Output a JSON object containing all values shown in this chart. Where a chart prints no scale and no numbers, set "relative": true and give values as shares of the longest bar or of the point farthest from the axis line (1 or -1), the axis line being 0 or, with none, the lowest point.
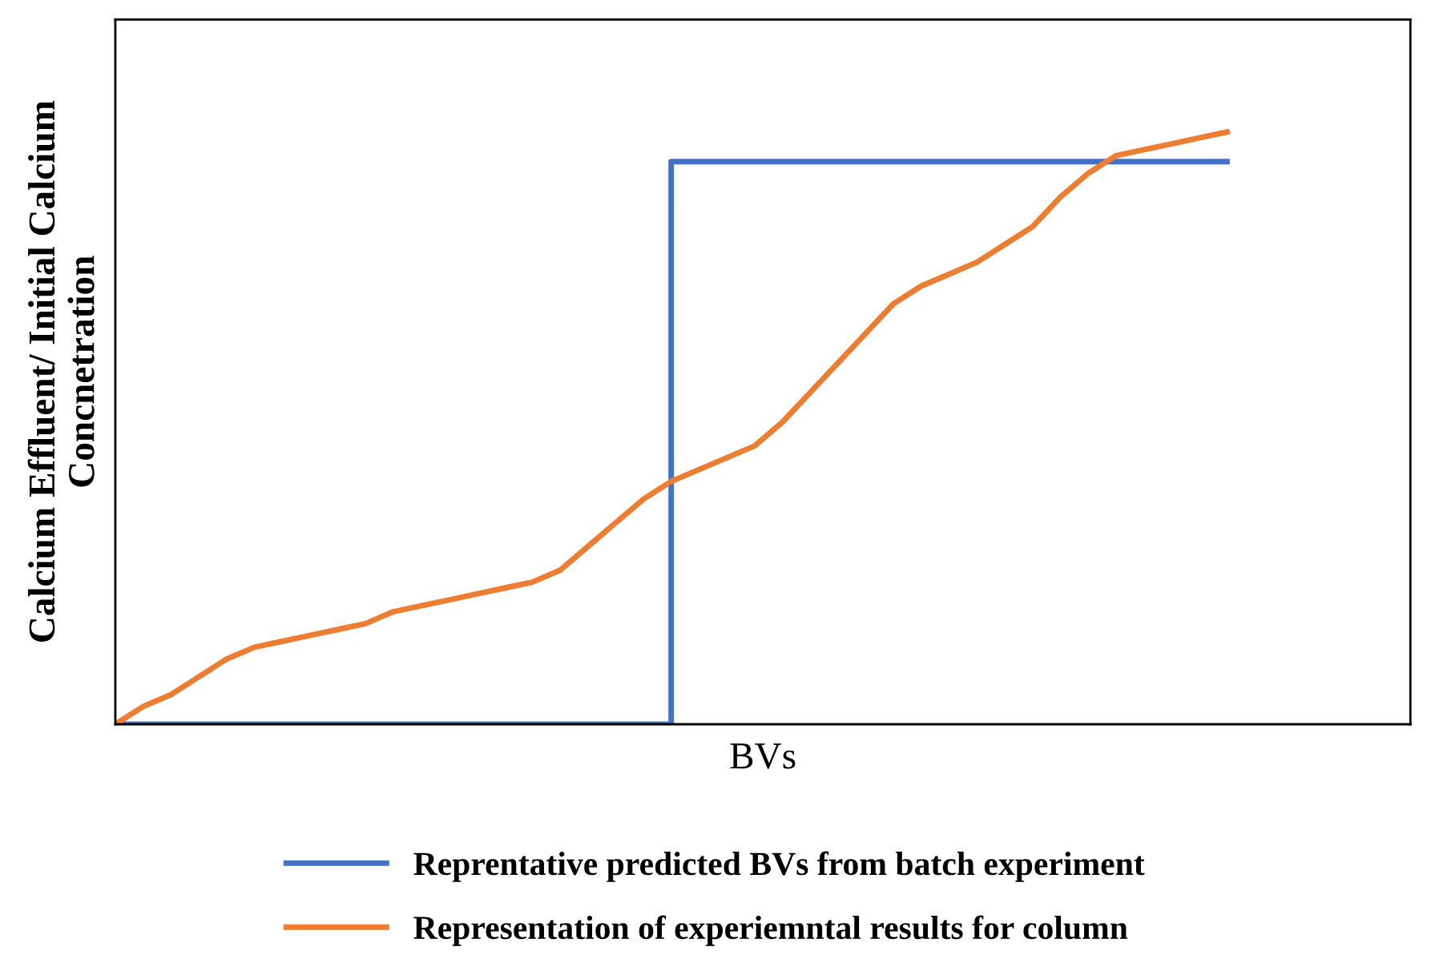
{
  "chart_data": {
    "type": "line",
    "relative": true,
    "xlabel": "BVs",
    "ylabel": "Calcium Effluent/ Initial Calcium\nConcnetration",
    "legend": "bottom",
    "marker": "none",
    "line_style": "solid",
    "categories": [
      null,
      null,
      null,
      null,
      null,
      null,
      null,
      null,
      null,
      null,
      null,
      null,
      null,
      null,
      null,
      null,
      null,
      null,
      null,
      null,
      null,
      null,
      null,
      null,
      null,
      null,
      null,
      null,
      null,
      null,
      null,
      null,
      null,
      null,
      null,
      null,
      null,
      null,
      null,
      null,
      null
    ],
    "series": [
      {
        "name": "Reprentative predicted BVs from batch experiment",
        "type": "step",
        "color": "#4472c4",
        "values": [
          0,
          0,
          0,
          0,
          0,
          0,
          0,
          0,
          0,
          0,
          0,
          0,
          0,
          0,
          0,
          0,
          0,
          0,
          0,
          0,
          0.95,
          0.95,
          0.95,
          0.95,
          0.95,
          0.95,
          0.95,
          0.95,
          0.95,
          0.95,
          0.95,
          0.95,
          0.95,
          0.95,
          0.95,
          0.95,
          0.95,
          0.95,
          0.95,
          0.95,
          0.95
        ]
      },
      {
        "name": "Representation of experiemntal results for column",
        "color": "#ed7d31",
        "values": [
          0,
          0.03,
          0.05,
          0.08,
          0.11,
          0.13,
          0.14,
          0.15,
          0.16,
          0.17,
          0.19,
          0.2,
          0.21,
          0.22,
          0.23,
          0.24,
          0.26,
          0.3,
          0.34,
          0.38,
          0.41,
          0.43,
          0.45,
          0.47,
          0.51,
          0.56,
          0.61,
          0.66,
          0.71,
          0.74,
          0.76,
          0.78,
          0.81,
          0.84,
          0.89,
          0.93,
          0.96,
          0.97,
          0.98,
          0.99,
          1
        ]
      }
    ]
  }
}
